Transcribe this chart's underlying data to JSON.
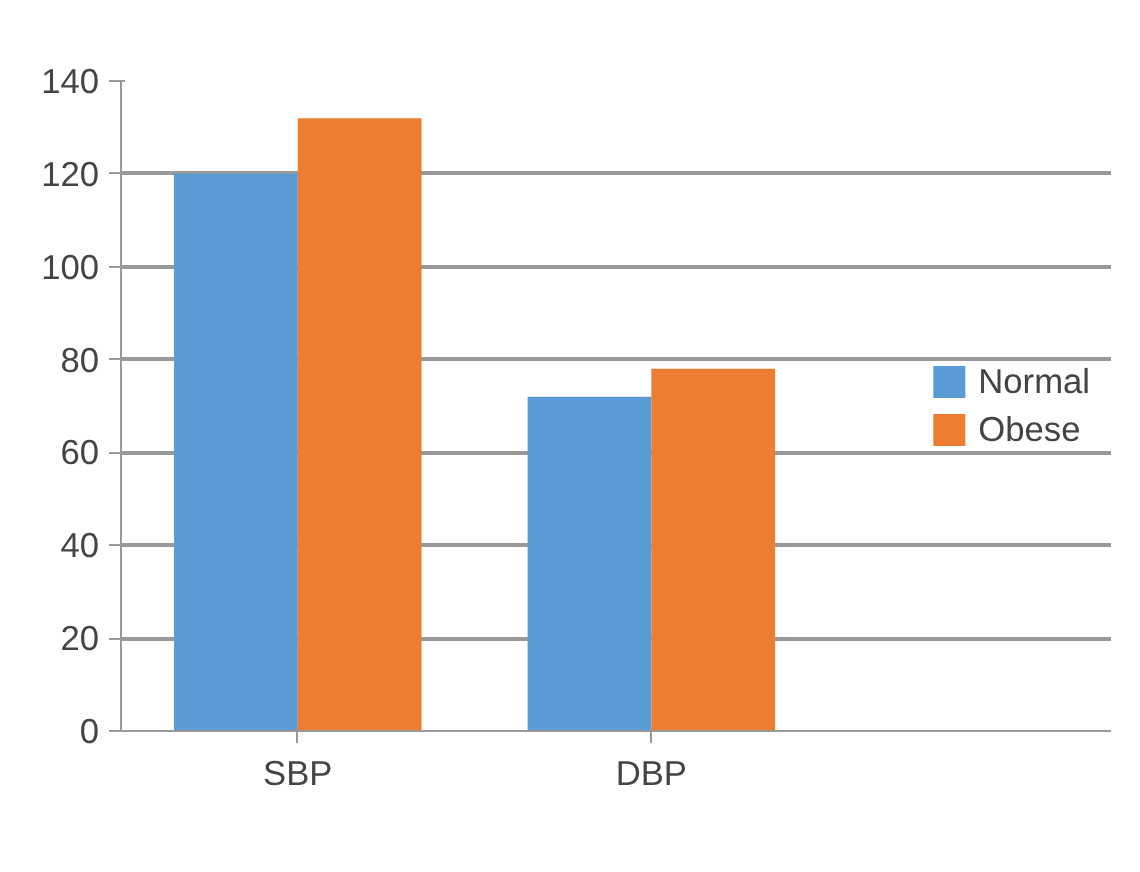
{
  "chart_data": {
    "type": "bar",
    "categories": [
      "SBP",
      "DBP"
    ],
    "series": [
      {
        "name": "Normal",
        "color": "#5b9bd5",
        "values": [
          120,
          72
        ]
      },
      {
        "name": "Obese",
        "color": "#ed7d31",
        "values": [
          132,
          78
        ]
      }
    ],
    "ylim": [
      0,
      140
    ],
    "yticks": [
      0,
      20,
      40,
      60,
      80,
      100,
      120,
      140
    ],
    "grid": "y",
    "legend": "right"
  }
}
